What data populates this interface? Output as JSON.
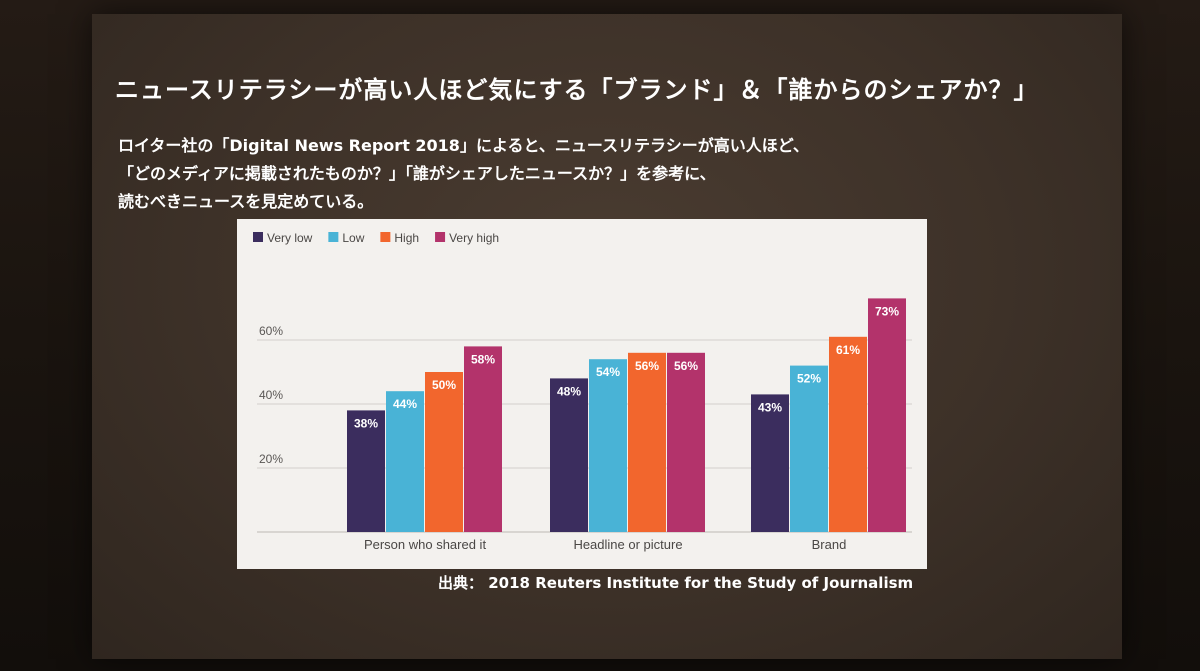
{
  "slide": {
    "title": "ニュースリテラシーが高い人ほど気にする「ブランド」＆「誰からのシェアか？」",
    "description_lines": [
      "ロイター社の「Digital News Report 2018」によると、ニュースリテラシーが高い人ほど、",
      "「どのメディアに掲載されたものか？」「誰がシェアしたニュースか？」を参考に、",
      "読むべきニュースを見定めている。"
    ],
    "source": "出典： 2018 Reuters Institute for the Study of Journalism"
  },
  "chart_data": {
    "type": "bar",
    "categories": [
      "Person who shared it",
      "Headline or picture",
      "Brand"
    ],
    "series": [
      {
        "name": "Very low",
        "color": "#3b2d5e",
        "values": [
          38,
          48,
          43
        ],
        "labels": [
          "38%",
          "48%",
          "43%"
        ]
      },
      {
        "name": "Low",
        "color": "#49b3d6",
        "values": [
          44,
          54,
          52
        ],
        "labels": [
          "44%",
          "54%",
          "52%"
        ]
      },
      {
        "name": "High",
        "color": "#f2662d",
        "values": [
          50,
          56,
          61
        ],
        "labels": [
          "50%",
          "56%",
          "61%"
        ]
      },
      {
        "name": "Very high",
        "color": "#b3336b",
        "values": [
          58,
          56,
          73
        ],
        "labels": [
          "58%",
          "56%",
          "73%"
        ]
      }
    ],
    "yticks": [
      "20%",
      "40%",
      "60%"
    ],
    "ytick_values": [
      20,
      40,
      60
    ],
    "ylim": [
      0,
      80
    ],
    "grid": true,
    "legend_position": "top-left"
  }
}
